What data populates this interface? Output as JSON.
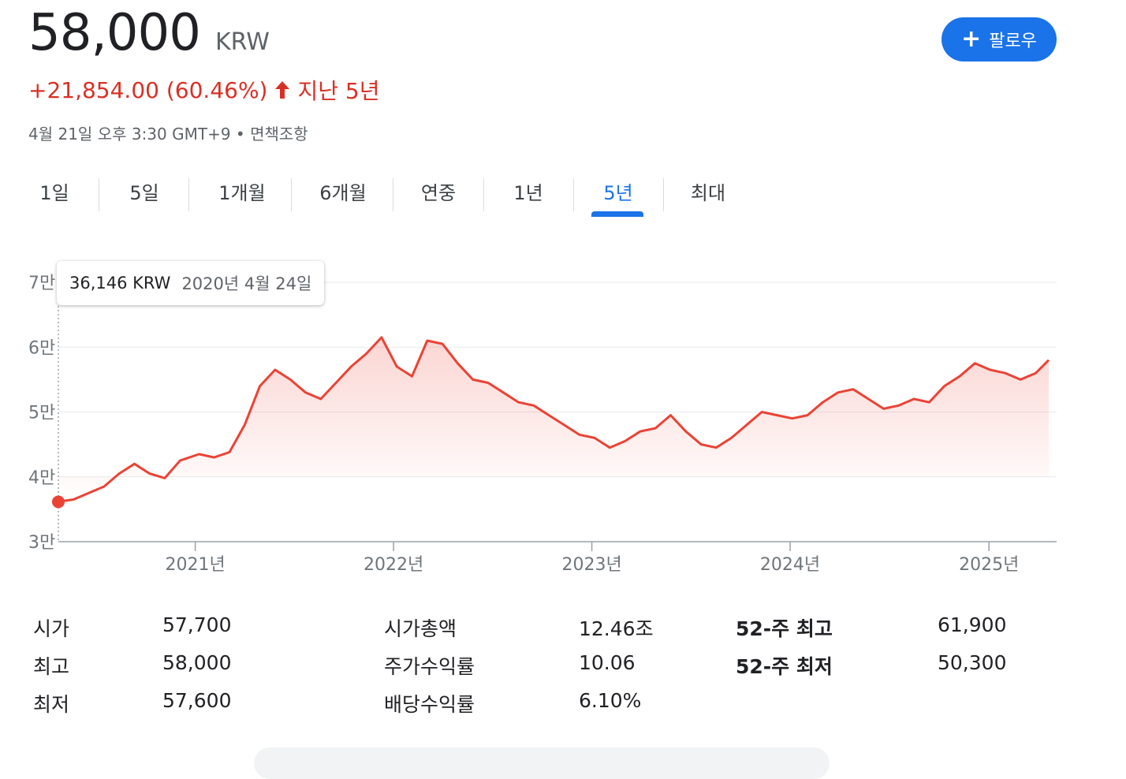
{
  "header": {
    "price": "58,000",
    "currency": "KRW",
    "change": "+21,854.00 (60.46%)",
    "period_label": "지난 5년",
    "meta": "4월 21일 오후 3:30 GMT+9 • 면책조항",
    "follow_label": "팔로우"
  },
  "tabs": [
    {
      "label": "1일"
    },
    {
      "label": "5일"
    },
    {
      "label": "1개월"
    },
    {
      "label": "6개월"
    },
    {
      "label": "연중"
    },
    {
      "label": "1년"
    },
    {
      "label": "5년"
    },
    {
      "label": "최대"
    }
  ],
  "active_tab": "5년",
  "tooltip": {
    "value": "36,146 KRW",
    "date": "2020년 4월 24일"
  },
  "colors": {
    "line": "#ea4335",
    "accent": "#1a73e8",
    "change": "#d93025"
  },
  "chart_data": {
    "type": "area",
    "y_tick_labels": [
      "7만",
      "6만",
      "5만",
      "4만",
      "3만"
    ],
    "y_ticks": [
      70000,
      60000,
      50000,
      40000,
      30000
    ],
    "ylim": [
      30000,
      70000
    ],
    "x_tick_labels": [
      "2021년",
      "2022년",
      "2023년",
      "2024년",
      "2025년"
    ],
    "x_ticks": [
      "2021-01-01",
      "2022-01-01",
      "2023-01-01",
      "2024-01-01",
      "2025-01-01"
    ],
    "xlim": [
      "2020-04-24",
      "2025-04-21"
    ],
    "grid": true,
    "series": [
      {
        "x": [
          "2020-04-24",
          "2020-05-22",
          "2020-06-19",
          "2020-07-17",
          "2020-08-14",
          "2020-09-11",
          "2020-10-09",
          "2020-11-06",
          "2020-12-04",
          "2021-01-08",
          "2021-02-05",
          "2021-03-05",
          "2021-04-02",
          "2021-04-30",
          "2021-05-28",
          "2021-06-25",
          "2021-07-23",
          "2021-08-20",
          "2021-09-17",
          "2021-10-15",
          "2021-11-12",
          "2021-12-10",
          "2022-01-07",
          "2022-02-04",
          "2022-03-04",
          "2022-04-01",
          "2022-04-29",
          "2022-05-27",
          "2022-06-24",
          "2022-07-22",
          "2022-08-19",
          "2022-09-16",
          "2022-10-14",
          "2022-11-11",
          "2022-12-09",
          "2023-01-06",
          "2023-02-03",
          "2023-03-03",
          "2023-03-31",
          "2023-04-28",
          "2023-05-26",
          "2023-06-23",
          "2023-07-21",
          "2023-08-18",
          "2023-09-15",
          "2023-10-13",
          "2023-11-10",
          "2023-12-08",
          "2024-01-05",
          "2024-02-02",
          "2024-03-01",
          "2024-03-29",
          "2024-04-26",
          "2024-05-24",
          "2024-06-21",
          "2024-07-19",
          "2024-08-16",
          "2024-09-13",
          "2024-10-11",
          "2024-11-08",
          "2024-12-06",
          "2025-01-03",
          "2025-01-31",
          "2025-02-28",
          "2025-03-28",
          "2025-04-21"
        ],
        "values": [
          36146,
          36500,
          37500,
          38500,
          40500,
          42000,
          40500,
          39800,
          42500,
          43500,
          43000,
          43800,
          48000,
          54000,
          56500,
          55000,
          53000,
          52000,
          54500,
          57000,
          59000,
          61500,
          57000,
          55500,
          61000,
          60500,
          57500,
          55000,
          54500,
          53000,
          51500,
          51000,
          49500,
          48000,
          46500,
          46000,
          44500,
          45500,
          47000,
          47500,
          49500,
          47000,
          45000,
          44500,
          46000,
          48000,
          50000,
          49500,
          49000,
          49500,
          51500,
          53000,
          53500,
          52000,
          50500,
          51000,
          52000,
          51500,
          54000,
          55500,
          57500,
          56500,
          56000,
          55000,
          56000,
          58000
        ]
      }
    ]
  },
  "stats": {
    "col1": [
      {
        "label": "시가",
        "value": "57,700"
      },
      {
        "label": "최고",
        "value": "58,000"
      },
      {
        "label": "최저",
        "value": "57,600"
      }
    ],
    "col2": [
      {
        "label": "시가총액",
        "value": "12.46조"
      },
      {
        "label": "주가수익률",
        "value": "10.06"
      },
      {
        "label": "배당수익률",
        "value": "6.10%"
      }
    ],
    "col3": [
      {
        "label": "52-주 최고",
        "value": "61,900"
      },
      {
        "label": "52-주 최저",
        "value": "50,300"
      }
    ]
  }
}
